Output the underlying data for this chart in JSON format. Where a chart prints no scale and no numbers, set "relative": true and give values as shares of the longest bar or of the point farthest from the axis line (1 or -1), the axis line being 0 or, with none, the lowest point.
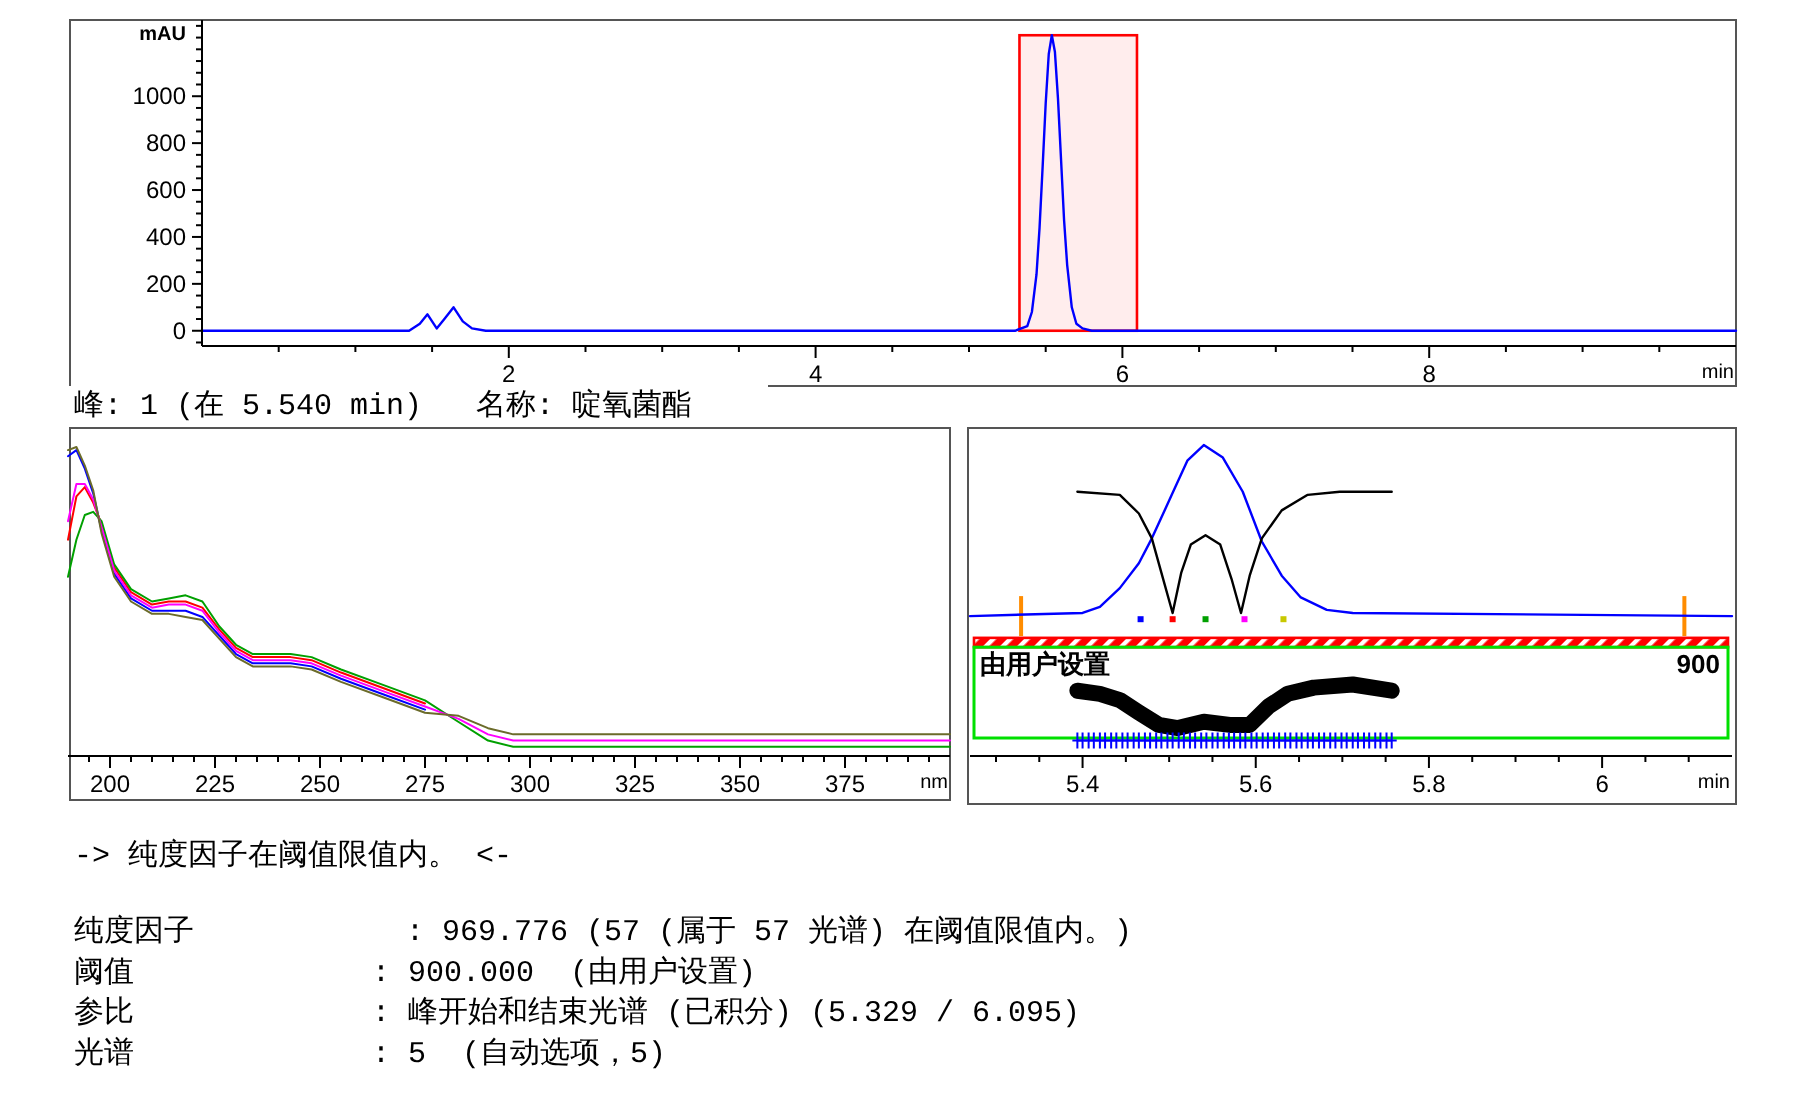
{
  "chart_data": [
    {
      "type": "line",
      "xlabel": "min",
      "ylabel": "mAU",
      "xlim": [
        0,
        10
      ],
      "ylim": [
        -65,
        1325
      ],
      "xticks": [
        {
          "value": 0.5,
          "label": null
        },
        {
          "value": 1,
          "label": null
        },
        {
          "value": 1.5,
          "label": null
        },
        2,
        {
          "value": 2.5,
          "label": null
        },
        {
          "value": 3,
          "label": null
        },
        {
          "value": 3.5,
          "label": null
        },
        4,
        {
          "value": 4.5,
          "label": null
        },
        {
          "value": 5,
          "label": null
        },
        {
          "value": 5.5,
          "label": null
        },
        6,
        {
          "value": 6.5,
          "label": null
        },
        {
          "value": 7,
          "label": null
        },
        {
          "value": 7.5,
          "label": null
        },
        8,
        {
          "value": 8.5,
          "label": null
        },
        {
          "value": 9,
          "label": null
        },
        {
          "value": 9.5,
          "label": null
        }
      ],
      "yticks": [
        {
          "value": -50,
          "label": null
        },
        0,
        {
          "value": 50,
          "label": null
        },
        {
          "value": 100,
          "label": null
        },
        {
          "value": 150,
          "label": null
        },
        200,
        {
          "value": 250,
          "label": null
        },
        {
          "value": 300,
          "label": null
        },
        {
          "value": 350,
          "label": null
        },
        400,
        {
          "value": 450,
          "label": null
        },
        {
          "value": 500,
          "label": null
        },
        {
          "value": 550,
          "label": null
        },
        600,
        {
          "value": 650,
          "label": null
        },
        {
          "value": 700,
          "label": null
        },
        {
          "value": 750,
          "label": null
        },
        800,
        {
          "value": 850,
          "label": null
        },
        {
          "value": 900,
          "label": null
        },
        {
          "value": 950,
          "label": null
        },
        1000,
        {
          "value": 1050,
          "label": null
        },
        {
          "value": 1100,
          "label": null
        },
        {
          "value": 1150,
          "label": null
        },
        {
          "value": 1200,
          "label": null
        },
        {
          "value": 1250,
          "label": null
        },
        {
          "value": 1300,
          "label": null
        }
      ],
      "series": [
        {
          "color": "#0000ff",
          "x": [
            0,
            1.35,
            1.42,
            1.47,
            1.53,
            1.58,
            1.64,
            1.7,
            1.76,
            1.85,
            5.3,
            5.38,
            5.41,
            5.44,
            5.46,
            5.48,
            5.5,
            5.52,
            5.54,
            5.56,
            5.58,
            5.6,
            5.62,
            5.64,
            5.67,
            5.7,
            5.74,
            5.8,
            10
          ],
          "values": [
            0,
            0,
            30,
            70,
            10,
            50,
            100,
            40,
            10,
            0,
            0,
            20,
            80,
            240,
            440,
            700,
            970,
            1180,
            1260,
            1190,
            990,
            730,
            470,
            280,
            100,
            30,
            10,
            0,
            0
          ]
        }
      ],
      "bands": [
        {
          "axis": "x",
          "from": 5.329,
          "to": 6.095,
          "color": "#ff0000"
        }
      ]
    },
    {
      "type": "line",
      "title": "峰: 1 (在 5.540 min)   名称: 啶氧菌酯",
      "relative": true,
      "xlabel": "nm",
      "xlim": [
        190,
        400
      ],
      "xticks": [
        {
          "value": 195,
          "label": null
        },
        200,
        {
          "value": 205,
          "label": null
        },
        {
          "value": 210,
          "label": null
        },
        {
          "value": 215,
          "label": null
        },
        {
          "value": 220,
          "label": null
        },
        225,
        {
          "value": 230,
          "label": null
        },
        {
          "value": 235,
          "label": null
        },
        {
          "value": 240,
          "label": null
        },
        {
          "value": 245,
          "label": null
        },
        250,
        {
          "value": 255,
          "label": null
        },
        {
          "value": 260,
          "label": null
        },
        {
          "value": 265,
          "label": null
        },
        {
          "value": 270,
          "label": null
        },
        275,
        {
          "value": 280,
          "label": null
        },
        {
          "value": 285,
          "label": null
        },
        {
          "value": 290,
          "label": null
        },
        {
          "value": 295,
          "label": null
        },
        300,
        {
          "value": 305,
          "label": null
        },
        {
          "value": 310,
          "label": null
        },
        {
          "value": 315,
          "label": null
        },
        {
          "value": 320,
          "label": null
        },
        325,
        {
          "value": 330,
          "label": null
        },
        {
          "value": 335,
          "label": null
        },
        {
          "value": 340,
          "label": null
        },
        {
          "value": 345,
          "label": null
        },
        350,
        {
          "value": 355,
          "label": null
        },
        {
          "value": 360,
          "label": null
        },
        {
          "value": 365,
          "label": null
        },
        {
          "value": 370,
          "label": null
        },
        375,
        {
          "value": 380,
          "label": null
        },
        {
          "value": 385,
          "label": null
        },
        {
          "value": 390,
          "label": null
        },
        {
          "value": 395,
          "label": null
        }
      ],
      "x": [
        190,
        192,
        194,
        196,
        198,
        201,
        205,
        210,
        214,
        218,
        222,
        226,
        230,
        234,
        238,
        243,
        248,
        255,
        265,
        275,
        283,
        290,
        296,
        300,
        330,
        360,
        400
      ],
      "series": [
        {
          "color": "#0000ff",
          "values": [
            0.97,
            0.99,
            0.93,
            0.85,
            0.73,
            0.59,
            0.51,
            0.47,
            0.47,
            0.47,
            0.45,
            0.39,
            0.33,
            0.3,
            0.3,
            0.3,
            0.29,
            0.25,
            0.2,
            0.15,
            null,
            null,
            null,
            null,
            null,
            null,
            null
          ]
        },
        {
          "color": "#ff0000",
          "values": [
            0.7,
            0.84,
            0.87,
            0.82,
            0.75,
            0.61,
            0.53,
            0.49,
            0.5,
            0.5,
            0.48,
            0.41,
            0.35,
            0.32,
            0.32,
            0.32,
            0.31,
            0.27,
            0.22,
            0.17,
            null,
            null,
            null,
            null,
            null,
            null,
            null
          ]
        },
        {
          "color": "#00a000",
          "values": [
            0.58,
            0.7,
            0.78,
            0.79,
            0.76,
            0.62,
            0.54,
            0.5,
            0.51,
            0.52,
            0.5,
            0.42,
            0.36,
            0.33,
            0.33,
            0.33,
            0.32,
            0.28,
            0.23,
            0.18,
            0.11,
            0.05,
            0.03,
            0.03,
            0.03,
            0.03,
            0.03
          ]
        },
        {
          "color": "#ff00ff",
          "values": [
            0.76,
            0.88,
            0.88,
            0.83,
            0.74,
            0.6,
            0.52,
            0.48,
            0.49,
            0.49,
            0.47,
            0.4,
            0.34,
            0.31,
            0.31,
            0.31,
            0.3,
            0.26,
            0.21,
            0.16,
            0.12,
            0.07,
            0.05,
            0.05,
            0.05,
            0.05,
            0.05
          ]
        },
        {
          "color": "#6b6b2a",
          "values": [
            0.99,
            1,
            0.94,
            0.86,
            0.72,
            0.58,
            0.5,
            0.46,
            0.46,
            0.45,
            0.44,
            0.38,
            0.32,
            0.29,
            0.29,
            0.29,
            0.28,
            0.24,
            0.19,
            0.14,
            0.13,
            0.09,
            0.07,
            0.07,
            0.07,
            0.07,
            0.07
          ]
        }
      ]
    },
    {
      "type": "line",
      "relative": true,
      "xlabel": "min",
      "xlim": [
        5.27,
        6.15
      ],
      "xticks": [
        {
          "value": 5.3,
          "label": null
        },
        {
          "value": 5.35,
          "label": null
        },
        5.4,
        {
          "value": 5.45,
          "label": null
        },
        {
          "value": 5.5,
          "label": null
        },
        {
          "value": 5.55,
          "label": null
        },
        5.6,
        {
          "value": 5.65,
          "label": null
        },
        {
          "value": 5.7,
          "label": null
        },
        {
          "value": 5.75,
          "label": null
        },
        5.8,
        {
          "value": 5.85,
          "label": null
        },
        {
          "value": 5.9,
          "label": null
        },
        {
          "value": 5.95,
          "label": null
        },
        6,
        {
          "value": 6.05,
          "label": null
        },
        {
          "value": 6.1,
          "label": null
        }
      ],
      "series": [
        {
          "type": "line",
          "color": "#0000ff",
          "x": [
            5.27,
            5.4,
            5.42,
            5.443,
            5.465,
            5.48,
            5.503,
            5.521,
            5.54,
            5.562,
            5.585,
            5.607,
            5.63,
            5.652,
            5.682,
            5.712,
            6.15
          ],
          "values": [
            0.45,
            0.46,
            0.48,
            0.54,
            0.62,
            0.7,
            0.84,
            0.95,
            1,
            0.96,
            0.85,
            0.69,
            0.58,
            0.51,
            0.47,
            0.46,
            0.45
          ]
        },
        {
          "type": "line",
          "color": "#000000",
          "x": [
            5.394,
            5.443,
            5.465,
            5.48,
            5.491,
            5.504,
            5.514,
            5.525,
            5.542,
            5.559,
            5.572,
            5.583,
            5.593,
            5.607,
            5.63,
            5.66,
            5.697,
            5.757
          ],
          "values": [
            0.85,
            0.84,
            0.78,
            0.7,
            0.59,
            0.46,
            0.59,
            0.68,
            0.71,
            0.68,
            0.57,
            0.46,
            0.58,
            0.7,
            0.79,
            0.84,
            0.85,
            0.85
          ]
        },
        {
          "type": "line",
          "color": "#000000",
          "x": [
            5.394,
            5.42,
            5.443,
            5.465,
            5.488,
            5.51,
            5.54,
            5.57,
            5.593,
            5.615,
            5.637,
            5.667,
            5.712,
            5.757
          ],
          "values": [
            0.21,
            0.2,
            0.18,
            0.14,
            0.1,
            0.09,
            0.11,
            0.1,
            0.1,
            0.16,
            0.2,
            0.22,
            0.23,
            0.21
          ]
        },
        {
          "type": "scatter",
          "marker": "cross",
          "color": "#0000ff",
          "x": [
            5.394,
            5.4,
            5.407,
            5.413,
            5.42,
            5.426,
            5.433,
            5.439,
            5.446,
            5.452,
            5.459,
            5.465,
            5.472,
            5.478,
            5.485,
            5.491,
            5.498,
            5.504,
            5.511,
            5.517,
            5.524,
            5.53,
            5.537,
            5.543,
            5.55,
            5.556,
            5.563,
            5.569,
            5.575,
            5.582,
            5.588,
            5.595,
            5.601,
            5.608,
            5.614,
            5.621,
            5.627,
            5.634,
            5.64,
            5.647,
            5.653,
            5.66,
            5.666,
            5.673,
            5.679,
            5.686,
            5.692,
            5.699,
            5.705,
            5.712,
            5.718,
            5.725,
            5.731,
            5.738,
            5.744,
            5.751,
            5.757
          ],
          "values": [
            0.05,
            0.05,
            0.05,
            0.05,
            0.05,
            0.05,
            0.05,
            0.05,
            0.05,
            0.05,
            0.05,
            0.05,
            0.05,
            0.05,
            0.05,
            0.05,
            0.05,
            0.05,
            0.05,
            0.05,
            0.05,
            0.05,
            0.05,
            0.05,
            0.05,
            0.05,
            0.05,
            0.05,
            0.05,
            0.05,
            0.05,
            0.05,
            0.05,
            0.05,
            0.05,
            0.05,
            0.05,
            0.05,
            0.05,
            0.05,
            0.05,
            0.05,
            0.05,
            0.05,
            0.05,
            0.05,
            0.05,
            0.05,
            0.05,
            0.05,
            0.05,
            0.05,
            0.05,
            0.05,
            0.05,
            0.05,
            0.05
          ]
        },
        {
          "type": "scatter",
          "marker": "square",
          "colors": [
            "#0000ff",
            "#ff0000",
            "#00a000",
            "#ff00ff",
            "#c8c800"
          ],
          "x": [
            5.467,
            5.504,
            5.542,
            5.587,
            5.632
          ],
          "values": [
            0.44,
            0.44,
            0.44,
            0.44,
            0.44
          ]
        }
      ],
      "ref_lines": [
        {
          "axis": "x",
          "value": 5.329,
          "color": "#ff8c00"
        },
        {
          "axis": "x",
          "value": 6.095,
          "color": "#ff8c00"
        }
      ],
      "bands": [
        {
          "axis": "y",
          "from": 0.35,
          "to": 0.38,
          "label": "由用户设置",
          "color": "#ff0000"
        }
      ],
      "annotations": [
        "900"
      ]
    },
    {
      "type": "other",
      "title": "-> 纯度因子在阈值限值内。 <-",
      "annotations": [
        "纯度因子",
        ": 969.776 (57 (属于 57 光谱) 在阈值限值内。)",
        "阈值",
        ": 900.000  (由用户设置)",
        "参比",
        ": 峰开始和结束光谱 (已积分) (5.329 / 6.095)",
        "光谱",
        ": 5  (自动选项，5)"
      ]
    }
  ]
}
